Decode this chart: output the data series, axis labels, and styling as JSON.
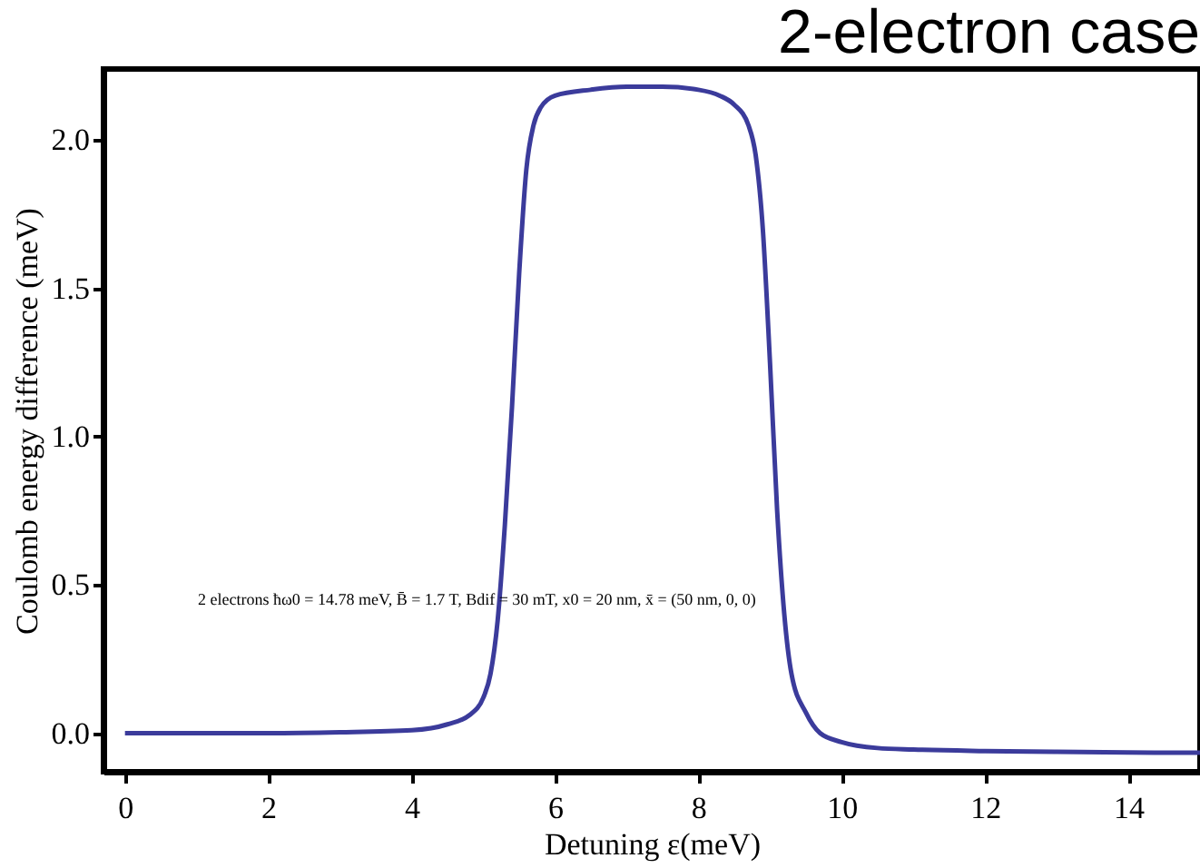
{
  "chart_data": {
    "type": "line",
    "title": "2-electron case",
    "xlabel": "Detuning ε(meV)",
    "ylabel": "Coulomb energy difference (meV)",
    "x": [
      0,
      1,
      2,
      3,
      4,
      4.5,
      4.8,
      5.0,
      5.1,
      5.2,
      5.3,
      5.4,
      5.5,
      5.6,
      5.7,
      5.8,
      6.0,
      6.5,
      7.0,
      7.5,
      8.0,
      8.3,
      8.5,
      8.7,
      8.8,
      8.9,
      9.0,
      9.1,
      9.2,
      9.3,
      9.5,
      9.7,
      10.0,
      10.5,
      11,
      12,
      13,
      14,
      15
    ],
    "series": [
      {
        "color": "#3b3b9b",
        "values": [
          0,
          0,
          0,
          0.003,
          0.01,
          0.03,
          0.06,
          0.12,
          0.2,
          0.38,
          0.7,
          1.1,
          1.55,
          1.9,
          2.05,
          2.11,
          2.15,
          2.17,
          2.18,
          2.18,
          2.17,
          2.15,
          2.12,
          2.05,
          1.95,
          1.7,
          1.25,
          0.75,
          0.4,
          0.2,
          0.07,
          0.0,
          -0.03,
          -0.05,
          -0.055,
          -0.06,
          -0.063,
          -0.065,
          -0.066
        ]
      }
    ],
    "xlim": [
      -0.3,
      15
    ],
    "ylim": [
      -0.13,
      2.24
    ],
    "xticks": [
      0,
      2,
      4,
      6,
      8,
      10,
      12,
      14
    ],
    "yticks": [
      {
        "value": 0,
        "label": "0.0"
      },
      {
        "value": 0.5,
        "label": "0.5"
      },
      {
        "value": 1,
        "label": "1.0"
      },
      {
        "value": 1.5,
        "label": "1.5"
      },
      {
        "value": 2,
        "label": "2.0"
      }
    ],
    "annotations": [
      "2 electrons ħω0 = 14.78 meV, B̄ = 1.7 T, Bdif = 30 mT, x0 = 20 nm, x̄ = (50 nm, 0, 0)"
    ],
    "grid": false,
    "marker": "none",
    "line_style": "solid"
  }
}
